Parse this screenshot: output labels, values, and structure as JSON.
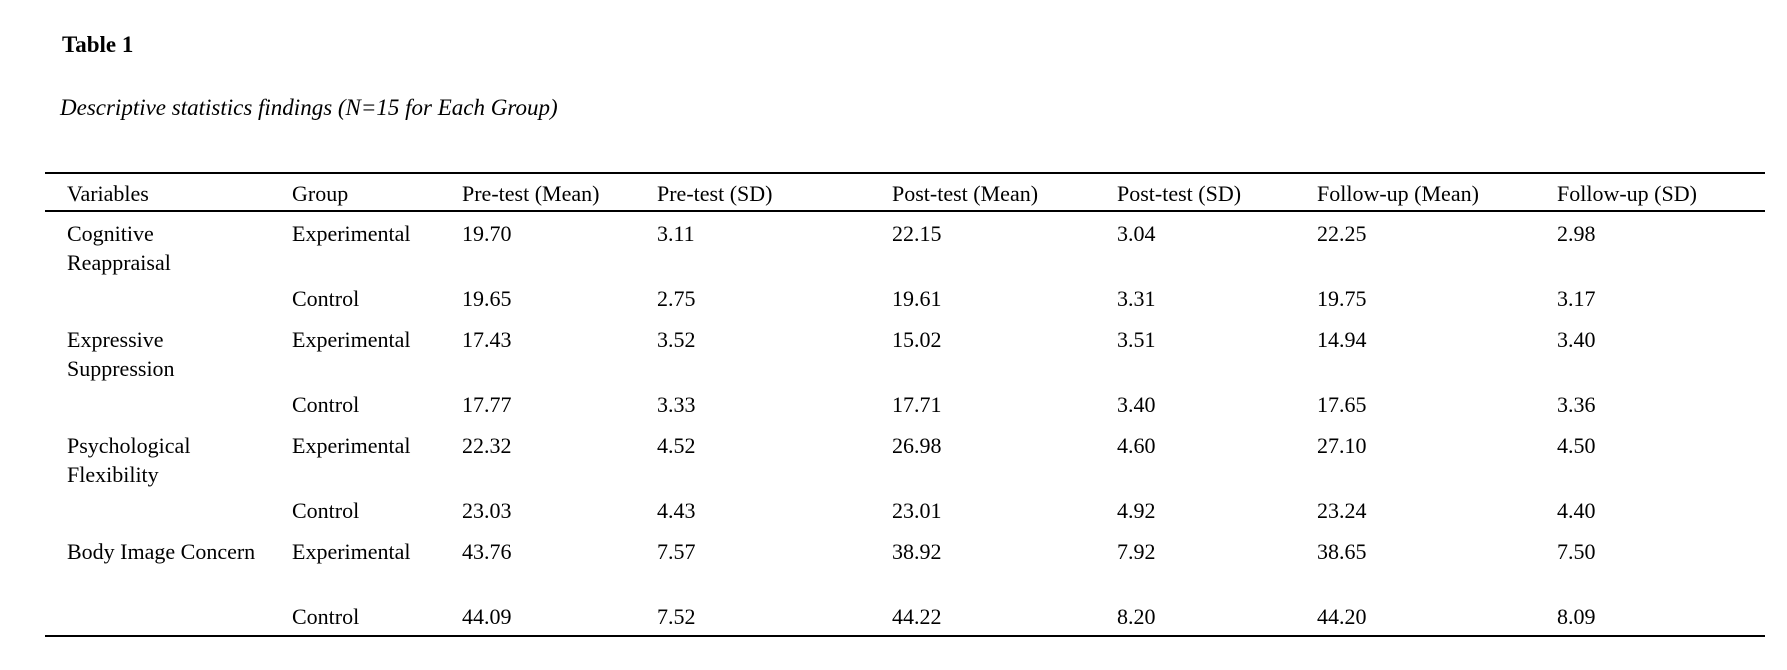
{
  "doc": {
    "table_label": "Table 1",
    "caption": "Descriptive statistics findings (N=15 for Each Group)"
  },
  "table": {
    "columns": [
      "Variables",
      "Group",
      "Pre-test (Mean)",
      "Pre-test (SD)",
      "Post-test (Mean)",
      "Post-test (SD)",
      "Follow-up (Mean)",
      "Follow-up (SD)"
    ],
    "rows": [
      {
        "variable": "Cognitive Reappraisal",
        "group": "Experimental",
        "values": [
          "19.70",
          "3.11",
          "22.15",
          "3.04",
          "22.25",
          "2.98"
        ]
      },
      {
        "variable": "",
        "group": "Control",
        "values": [
          "19.65",
          "2.75",
          "19.61",
          "3.31",
          "19.75",
          "3.17"
        ]
      },
      {
        "variable": "Expressive Suppression",
        "group": "Experimental",
        "values": [
          "17.43",
          "3.52",
          "15.02",
          "3.51",
          "14.94",
          "3.40"
        ]
      },
      {
        "variable": "",
        "group": "Control",
        "values": [
          "17.77",
          "3.33",
          "17.71",
          "3.40",
          "17.65",
          "3.36"
        ]
      },
      {
        "variable": "Psychological Flexibility",
        "group": "Experimental",
        "values": [
          "22.32",
          "4.52",
          "26.98",
          "4.60",
          "27.10",
          "4.50"
        ]
      },
      {
        "variable": "",
        "group": "Control",
        "values": [
          "23.03",
          "4.43",
          "23.01",
          "4.92",
          "23.24",
          "4.40"
        ]
      },
      {
        "variable": "Body Image Concern",
        "group": "Experimental",
        "values": [
          "43.76",
          "7.57",
          "38.92",
          "7.92",
          "38.65",
          "7.50"
        ]
      },
      {
        "variable": "",
        "group": "Control",
        "values": [
          "44.09",
          "7.52",
          "44.22",
          "8.20",
          "44.20",
          "8.09"
        ]
      }
    ]
  }
}
